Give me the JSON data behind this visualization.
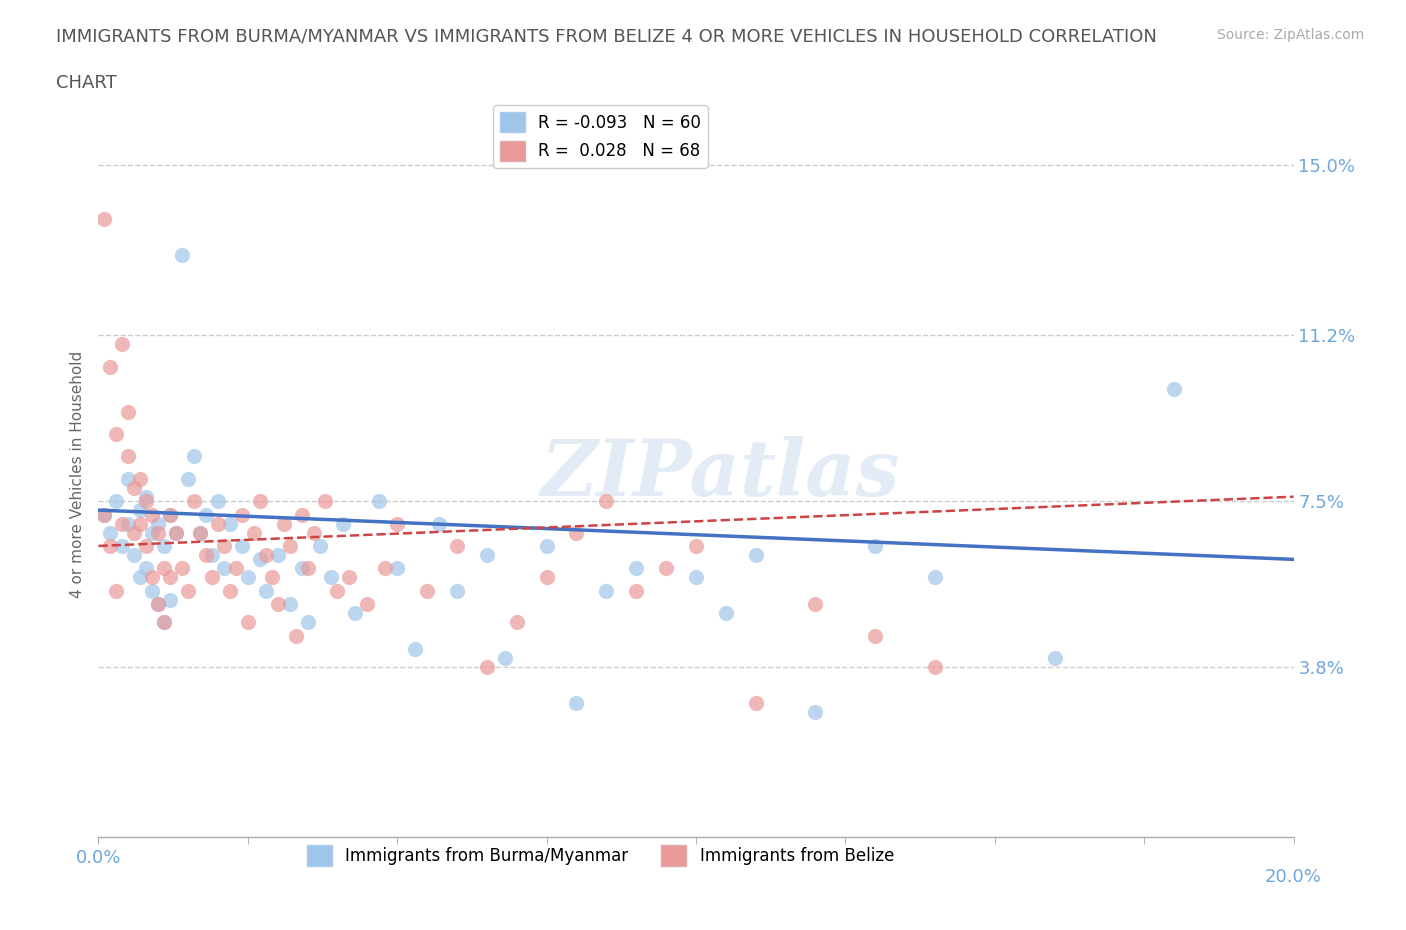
{
  "title_line1": "IMMIGRANTS FROM BURMA/MYANMAR VS IMMIGRANTS FROM BELIZE 4 OR MORE VEHICLES IN HOUSEHOLD CORRELATION",
  "title_line2": "CHART",
  "source": "Source: ZipAtlas.com",
  "xlabel_bottom": [
    "Immigrants from Burma/Myanmar",
    "Immigrants from Belize"
  ],
  "ylabel": "4 or more Vehicles in Household",
  "xmin": 0.0,
  "xmax": 0.2,
  "ymin": 0.0,
  "ymax": 0.162,
  "yticks": [
    0.038,
    0.075,
    0.112,
    0.15
  ],
  "ytick_labels": [
    "3.8%",
    "7.5%",
    "11.2%",
    "15.0%"
  ],
  "xtick_minor": [
    0.025,
    0.05,
    0.075,
    0.1,
    0.125,
    0.15,
    0.175
  ],
  "xtick_label_positions": [
    0.0,
    0.2
  ],
  "xtick_labels_shown": [
    "0.0%",
    "20.0%"
  ],
  "legend_R1": "-0.093",
  "legend_N1": "60",
  "legend_R2": "0.028",
  "legend_N2": "68",
  "color_blue": "#9fc5e8",
  "color_pink": "#ea9999",
  "color_trend_blue": "#4472c4",
  "color_trend_pink": "#cc4444",
  "color_axis_label": "#6fa8dc",
  "watermark": "ZIPatlas",
  "blue_trend_start_y": 0.073,
  "blue_trend_end_y": 0.062,
  "pink_trend_start_y": 0.065,
  "pink_trend_end_y": 0.076,
  "blue_x": [
    0.001,
    0.002,
    0.003,
    0.004,
    0.005,
    0.005,
    0.006,
    0.007,
    0.007,
    0.008,
    0.008,
    0.009,
    0.009,
    0.01,
    0.01,
    0.011,
    0.011,
    0.012,
    0.012,
    0.013,
    0.014,
    0.015,
    0.016,
    0.017,
    0.018,
    0.019,
    0.02,
    0.021,
    0.022,
    0.024,
    0.025,
    0.027,
    0.028,
    0.03,
    0.032,
    0.034,
    0.035,
    0.037,
    0.039,
    0.041,
    0.043,
    0.047,
    0.05,
    0.053,
    0.057,
    0.06,
    0.065,
    0.068,
    0.075,
    0.08,
    0.085,
    0.09,
    0.1,
    0.105,
    0.11,
    0.12,
    0.13,
    0.14,
    0.16,
    0.18
  ],
  "blue_y": [
    0.072,
    0.068,
    0.075,
    0.065,
    0.07,
    0.08,
    0.063,
    0.073,
    0.058,
    0.06,
    0.076,
    0.055,
    0.068,
    0.052,
    0.07,
    0.048,
    0.065,
    0.053,
    0.072,
    0.068,
    0.13,
    0.08,
    0.085,
    0.068,
    0.072,
    0.063,
    0.075,
    0.06,
    0.07,
    0.065,
    0.058,
    0.062,
    0.055,
    0.063,
    0.052,
    0.06,
    0.048,
    0.065,
    0.058,
    0.07,
    0.05,
    0.075,
    0.06,
    0.042,
    0.07,
    0.055,
    0.063,
    0.04,
    0.065,
    0.03,
    0.055,
    0.06,
    0.058,
    0.05,
    0.063,
    0.028,
    0.065,
    0.058,
    0.04,
    0.1
  ],
  "pink_x": [
    0.001,
    0.001,
    0.002,
    0.002,
    0.003,
    0.003,
    0.004,
    0.004,
    0.005,
    0.005,
    0.006,
    0.006,
    0.007,
    0.007,
    0.008,
    0.008,
    0.009,
    0.009,
    0.01,
    0.01,
    0.011,
    0.011,
    0.012,
    0.012,
    0.013,
    0.014,
    0.015,
    0.016,
    0.017,
    0.018,
    0.019,
    0.02,
    0.021,
    0.022,
    0.023,
    0.024,
    0.025,
    0.026,
    0.027,
    0.028,
    0.029,
    0.03,
    0.031,
    0.032,
    0.033,
    0.034,
    0.035,
    0.036,
    0.038,
    0.04,
    0.042,
    0.045,
    0.048,
    0.05,
    0.055,
    0.06,
    0.065,
    0.07,
    0.075,
    0.08,
    0.085,
    0.09,
    0.095,
    0.1,
    0.11,
    0.12,
    0.13,
    0.14
  ],
  "pink_y": [
    0.138,
    0.072,
    0.105,
    0.065,
    0.09,
    0.055,
    0.11,
    0.07,
    0.085,
    0.095,
    0.078,
    0.068,
    0.07,
    0.08,
    0.065,
    0.075,
    0.058,
    0.072,
    0.052,
    0.068,
    0.048,
    0.06,
    0.058,
    0.072,
    0.068,
    0.06,
    0.055,
    0.075,
    0.068,
    0.063,
    0.058,
    0.07,
    0.065,
    0.055,
    0.06,
    0.072,
    0.048,
    0.068,
    0.075,
    0.063,
    0.058,
    0.052,
    0.07,
    0.065,
    0.045,
    0.072,
    0.06,
    0.068,
    0.075,
    0.055,
    0.058,
    0.052,
    0.06,
    0.07,
    0.055,
    0.065,
    0.038,
    0.048,
    0.058,
    0.068,
    0.075,
    0.055,
    0.06,
    0.065,
    0.03,
    0.052,
    0.045,
    0.038
  ]
}
